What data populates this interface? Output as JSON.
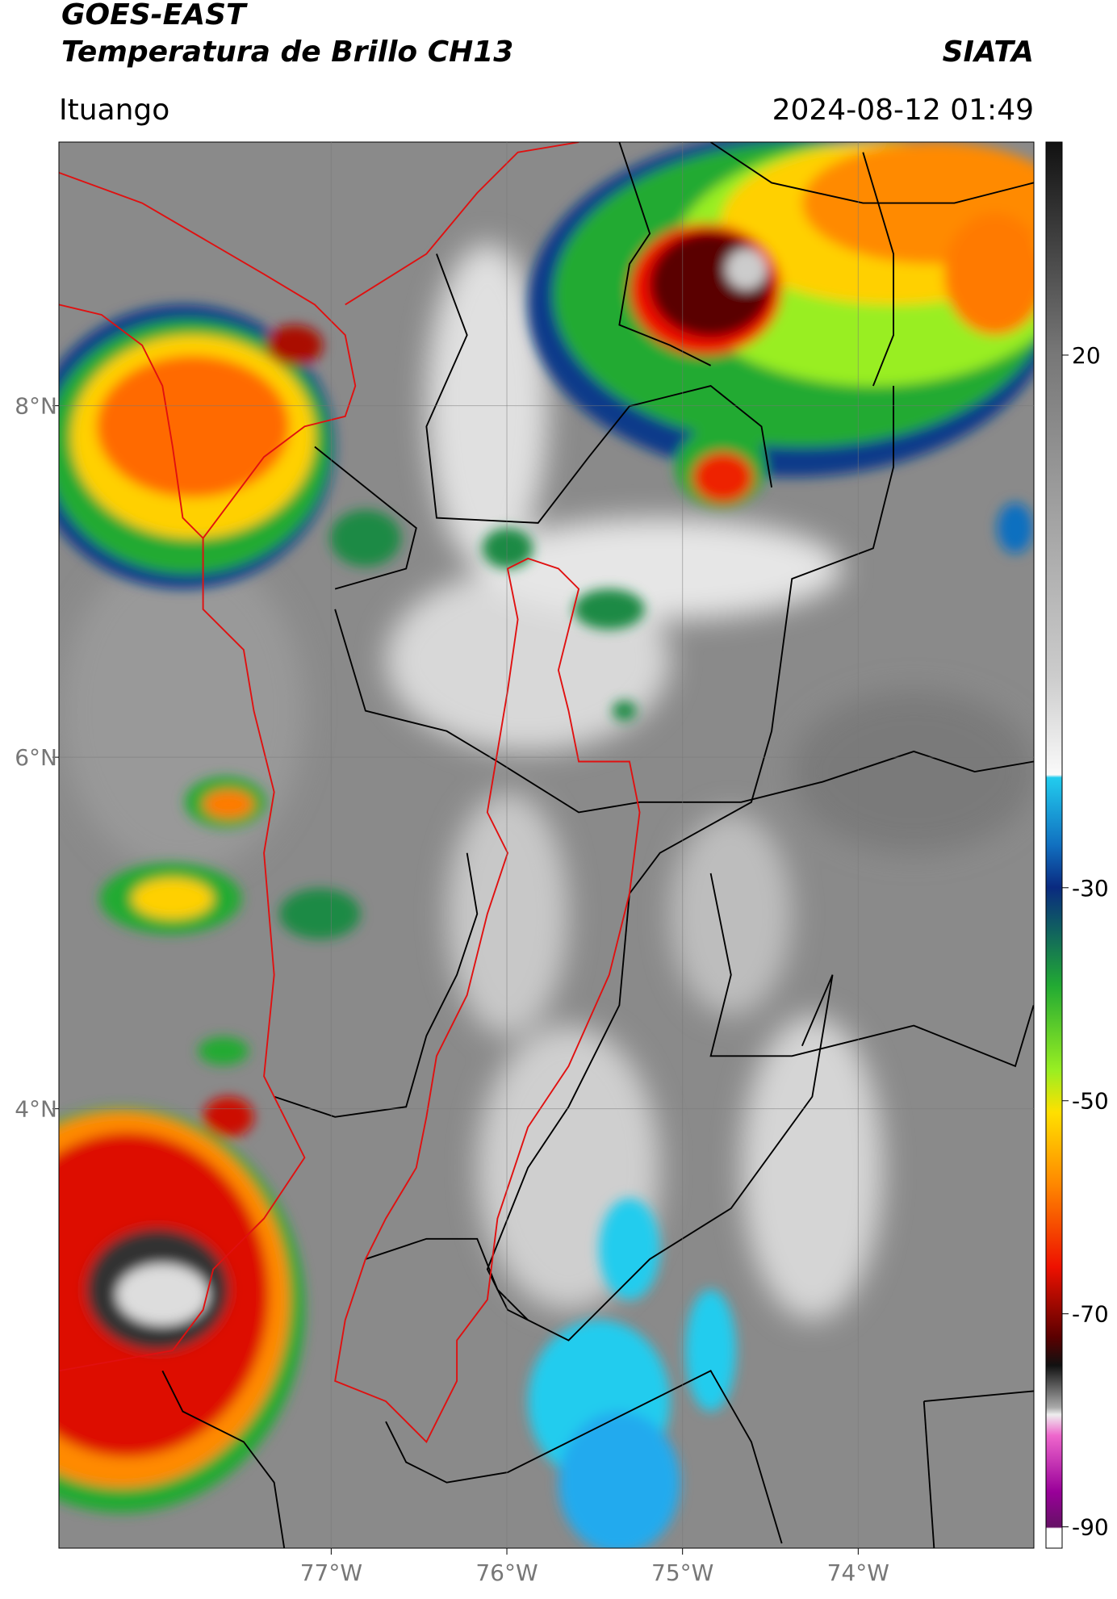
{
  "header": {
    "title": "GOES-EAST",
    "subtitle": "Temperatura de Brillo CH13",
    "source": "SIATA",
    "location": "Ituango",
    "timestamp": "2024-08-12 01:49"
  },
  "map": {
    "xlim": [
      -78.55,
      -73
    ],
    "ylim": [
      1.5,
      9.5
    ],
    "grid": true,
    "xticks": [
      {
        "value": -77,
        "label": "77°W"
      },
      {
        "value": -76,
        "label": "76°W"
      },
      {
        "value": -75,
        "label": "75°W"
      },
      {
        "value": -74,
        "label": "74°W"
      }
    ],
    "yticks": [
      {
        "value": 4,
        "label": "4°N"
      },
      {
        "value": 6,
        "label": "6°N"
      },
      {
        "value": 8,
        "label": "8°N"
      }
    ]
  },
  "colorbar": {
    "lim": [
      -92,
      40
    ],
    "ticks": [
      20,
      -30,
      -50,
      -70,
      -90
    ]
  }
}
